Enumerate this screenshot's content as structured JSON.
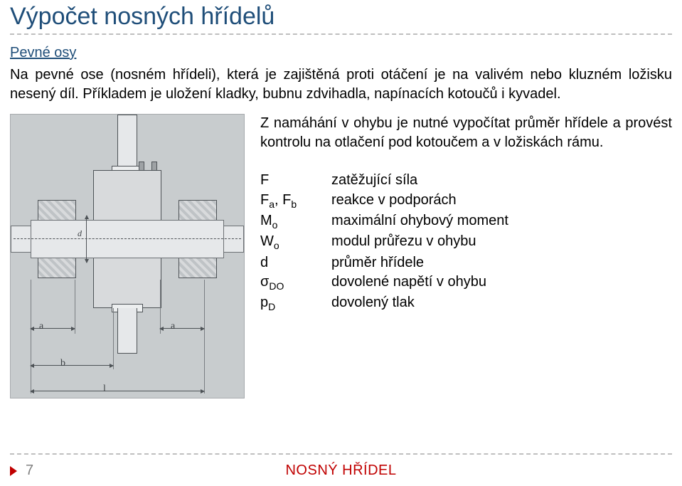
{
  "title": "Výpočet nosných hřídelů",
  "subtitle": "Pevné osy",
  "intro": "Na pevné ose (nosném hřídeli), která je zajištěná proti otáčení je na valivém nebo kluzném ložisku nesený díl. Příkladem je uložení kladky, bubnu zdvihadla, napínacích kotoučů i kyvadel.",
  "para2": "Z namáhání v ohybu je nutné vypočítat průměr hřídele a provést kontrolu na otlačení pod kotoučem a v ložiskách rámu.",
  "defs": {
    "F": {
      "sym": "F",
      "txt": "zatěžující síla"
    },
    "Fab": {
      "sym": "F_a, F_b",
      "txt": "reakce v podporách"
    },
    "Mo": {
      "sym": "M_o",
      "txt": "maximální ohybový moment"
    },
    "Wo": {
      "sym": "W_o",
      "txt": "modul průřezu v ohybu"
    },
    "d": {
      "sym": "d",
      "txt": "průměr hřídele"
    },
    "sDO": {
      "sym": "σ_DO",
      "txt": "dovolené napětí v ohybu"
    },
    "pD": {
      "sym": "p_D",
      "txt": "dovolený tlak"
    }
  },
  "figure": {
    "dims": {
      "d": "d",
      "a": "a",
      "b": "b",
      "l": "l"
    },
    "colors": {
      "bg": "#c8ccce",
      "metal_light": "#e6e8ea",
      "metal_mid": "#d8dadc",
      "edge": "#4d5256",
      "hatched_a": "#d8dadc",
      "hatched_b": "#bfc3c6"
    }
  },
  "footer": {
    "page": "7",
    "label": "NOSNÝ HŘÍDEL"
  },
  "palette": {
    "title_color": "#1f4e79",
    "accent_red": "#c00000",
    "rule_gray": "#bfbfbf",
    "text": "#000000",
    "muted": "#808080"
  }
}
